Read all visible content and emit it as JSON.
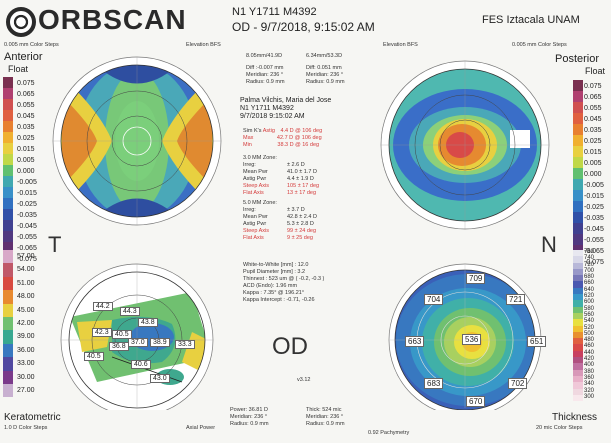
{
  "header": {
    "brand": "ORBSCAN",
    "exam_id": "N1 Y1711 M4392",
    "eye_date": "OD - 9/7/2018, 9:15:02 AM",
    "institution": "FES Iztacala UNAM"
  },
  "anterior": {
    "title": "Anterior",
    "subtitle": "Float",
    "steps": "0.005 mm Color Steps",
    "bfs": "Elevation BFS",
    "bfs_value": "8.05mm/41.9D",
    "diff_label": "Diff",
    "diff": ":-0.007 mm",
    "meridian_label": "Meridian:",
    "meridian": "236 °",
    "radius_label": "Radius:",
    "radius": "0.9 mm",
    "scale": [
      "0.075",
      "0.065",
      "0.055",
      "0.045",
      "0.035",
      "0.025",
      "0.015",
      "0.005",
      "0.000",
      "-0.005",
      "-0.015",
      "-0.025",
      "-0.035",
      "-0.045",
      "-0.055",
      "-0.065",
      "-0.075"
    ]
  },
  "posterior": {
    "title": "Posterior",
    "subtitle": "Float",
    "steps": "0.005 mm Color Steps",
    "bfs": "Elevation BFS",
    "bfs_value": "6.34mm/53.3D",
    "diff_label": "Diff:",
    "diff": "0.051 mm",
    "meridian_label": "Meridian:",
    "meridian": "236 °",
    "radius_label": "Radius:",
    "radius": "0.9 mm",
    "scale": [
      "0.075",
      "0.065",
      "0.055",
      "0.045",
      "0.035",
      "0.025",
      "0.015",
      "0.005",
      "0.000",
      "-0.005",
      "-0.015",
      "-0.025",
      "-0.035",
      "-0.045",
      "-0.055",
      "-0.065",
      "-0.075"
    ]
  },
  "patient": {
    "name": "Palma Vilchis, Maria del Jose",
    "id": "N1 Y1711 M4392",
    "date": "9/7/2018 9:15:02 AM"
  },
  "simk": {
    "simk_label": "Sim K's",
    "astig_label": "Astig",
    "simk_value": "4.4 D @ 106 deg",
    "max_label": "Max",
    "max": "42.7 D @ 106 deg",
    "min_label": "Min",
    "min": "38.3 D @ 16 deg"
  },
  "zone3": {
    "title": "3.0 MM Zone:",
    "rows": [
      {
        "l": "Irreg:",
        "v": "± 2.6 D",
        "red": false
      },
      {
        "l": "Mean Pwr",
        "v": "41.0  ± 1.7 D",
        "red": false
      },
      {
        "l": "Astig Pwr",
        "v": "4.4  ± 1.9 D",
        "red": false
      },
      {
        "l": "Steep Axis",
        "v": "105  ± 17 deg",
        "red": true
      },
      {
        "l": "Flat Axis",
        "v": "13  ± 17 deg",
        "red": false
      }
    ]
  },
  "zone5": {
    "title": "5.0 MM Zone:",
    "rows": [
      {
        "l": "Irreg:",
        "v": "± 3.7 D",
        "red": false
      },
      {
        "l": "Mean Pwr",
        "v": "42.8  ± 2.4 D",
        "red": false
      },
      {
        "l": "Astig Pwr",
        "v": "5.3  ± 2.8 D",
        "red": false
      },
      {
        "l": "Steep Axis",
        "v": "99  ± 24 deg",
        "red": true
      },
      {
        "l": "Flat Axis",
        "v": "9  ± 25 deg",
        "red": false
      }
    ]
  },
  "extra": [
    "White-to-White [mm] : 12.0",
    "Pupil Diameter [mm] : 3.2",
    "Thinnest : 523 um @ ( -0.2, -0.3 )",
    "ACD (Endo): 1.96 mm",
    "Kappa : 7.35° @ 196.21°",
    "Kappa Intercept : -0.71, -0.26"
  ],
  "eye_big": "OD",
  "version": "v3.12",
  "left_letter": "T",
  "right_letter": "N",
  "keratometric": {
    "title": "Keratometric",
    "steps": "1.0 D Color Steps",
    "axial": "Axial Power",
    "power_label": "Power:",
    "power": "36.81 D",
    "meridian_label": "Meridian:",
    "meridian": "236 °",
    "radius_label": "Radius:",
    "radius": "0.9 mm",
    "scale": [
      "57.00",
      "54.00",
      "51.00",
      "48.00",
      "45.00",
      "42.00",
      "39.00",
      "36.00",
      "33.00",
      "30.00",
      "27.00"
    ],
    "map_values": [
      "44.2",
      "44.3",
      "43.8",
      "42.3",
      "40.5",
      "37.0",
      "38.9",
      "33.3",
      "36.8",
      "40.5",
      "40.6",
      "43.0"
    ]
  },
  "thickness": {
    "title": "Thickness",
    "steps": "20 mic Color Steps",
    "pachy": "0.92 Pachymetry",
    "thick_label": "Thick:",
    "thick": "524 mic",
    "meridian_label": "Meridian:",
    "meridian": "236 °",
    "radius_label": "Radius:",
    "radius": "0.9 mm",
    "scale": [
      "760",
      "740",
      "720",
      "700",
      "680",
      "660",
      "640",
      "620",
      "600",
      "580",
      "560",
      "540",
      "520",
      "500",
      "480",
      "460",
      "440",
      "420",
      "400",
      "380",
      "360",
      "340",
      "320",
      "300"
    ],
    "center": "536",
    "points": [
      "709",
      "704",
      "721",
      "663",
      "651",
      "683",
      "702",
      "670"
    ]
  }
}
